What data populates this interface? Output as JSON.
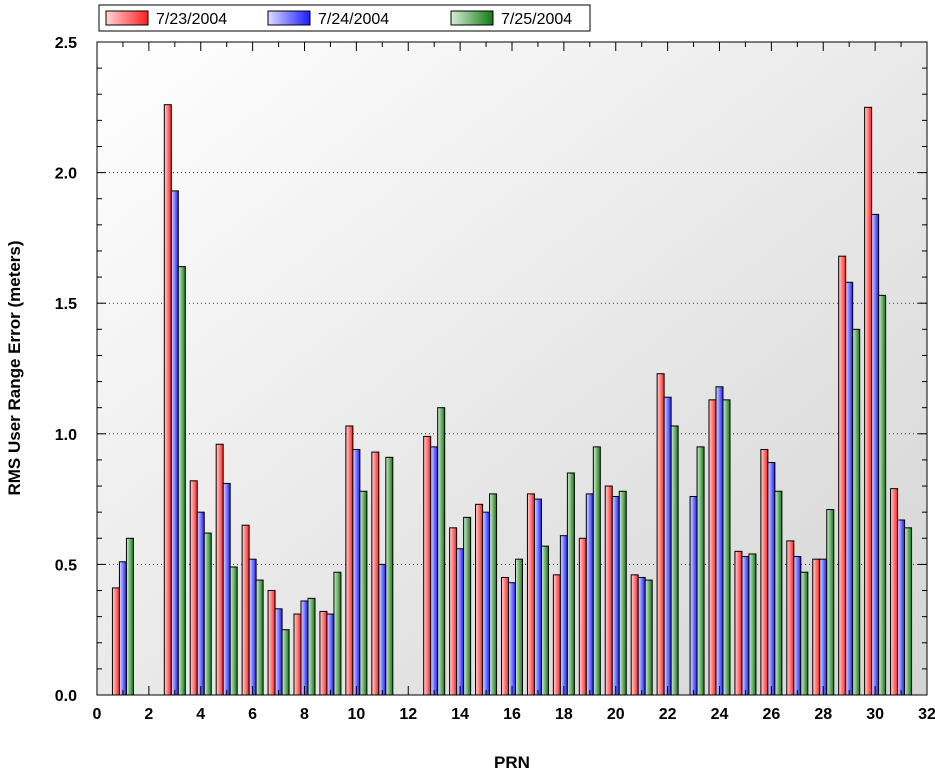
{
  "chart_data": {
    "type": "bar",
    "title": "",
    "xlabel": "PRN",
    "ylabel": "RMS User Range Error (meters)",
    "xlim": [
      0,
      32
    ],
    "ylim": [
      0,
      2.5
    ],
    "x_ticks": [
      0,
      2,
      4,
      6,
      8,
      10,
      12,
      14,
      16,
      18,
      20,
      22,
      24,
      26,
      28,
      30,
      32
    ],
    "y_ticks": [
      0.0,
      0.5,
      1.0,
      1.5,
      2.0,
      2.5
    ],
    "x_tick_labels": [
      "0",
      "2",
      "4",
      "6",
      "8",
      "10",
      "12",
      "14",
      "16",
      "18",
      "20",
      "22",
      "24",
      "26",
      "28",
      "30",
      "32"
    ],
    "y_tick_labels": [
      "0.0",
      "0.5",
      "1.0",
      "1.5",
      "2.0",
      "2.5"
    ],
    "grid": "horizontal-dotted",
    "legend_position": "top-left",
    "x": [
      1,
      3,
      4,
      5,
      6,
      7,
      8,
      9,
      10,
      11,
      13,
      14,
      15,
      16,
      17,
      18,
      19,
      20,
      21,
      22,
      23,
      24,
      25,
      26,
      27,
      28,
      29,
      30,
      31
    ],
    "series": [
      {
        "name": "7/23/2004",
        "color": "#ff2a2a",
        "values": [
          0.41,
          2.26,
          0.82,
          0.96,
          0.65,
          0.4,
          0.31,
          0.32,
          1.03,
          0.93,
          0.99,
          0.64,
          0.73,
          0.45,
          0.77,
          0.46,
          0.6,
          0.8,
          0.46,
          1.23,
          null,
          1.13,
          0.55,
          0.94,
          0.59,
          0.52,
          1.68,
          2.25,
          0.79
        ]
      },
      {
        "name": "7/24/2004",
        "color": "#2a2aff",
        "values": [
          0.51,
          1.93,
          0.7,
          0.81,
          0.52,
          0.33,
          0.36,
          0.31,
          0.94,
          0.5,
          0.95,
          0.56,
          0.7,
          0.43,
          0.75,
          0.61,
          0.77,
          0.76,
          0.45,
          1.14,
          0.76,
          1.18,
          0.53,
          0.89,
          0.53,
          0.52,
          1.58,
          1.84,
          0.67
        ]
      },
      {
        "name": "7/25/2004",
        "color": "#1a8c1a",
        "values": [
          0.6,
          1.64,
          0.62,
          0.49,
          0.44,
          0.25,
          0.37,
          0.47,
          0.78,
          0.91,
          1.1,
          0.68,
          0.77,
          0.52,
          0.57,
          0.85,
          0.95,
          0.78,
          0.44,
          1.03,
          0.95,
          1.13,
          0.54,
          0.78,
          0.47,
          0.71,
          1.4,
          1.53,
          0.64
        ]
      }
    ]
  }
}
